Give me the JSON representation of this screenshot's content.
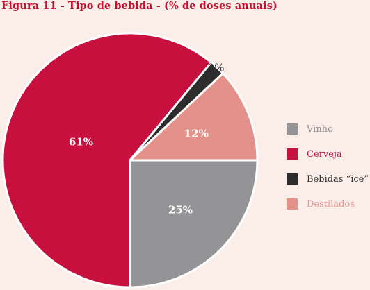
{
  "title": "Figura 11 - Tipo de bebida - (% de doses anuais)",
  "chart_data": {
    "type": "pie",
    "title": "Figura 11 - Tipo de bebida - (% de doses anuais)",
    "unit": "%",
    "legend_position": "right",
    "categories": [
      "Vinho",
      "Cerveja",
      "Bebidas “ice”",
      "Destilados"
    ],
    "values": [
      25,
      61,
      2,
      12
    ],
    "labels": [
      "25%",
      "61%",
      "2%",
      "12%"
    ],
    "colors": [
      "#949497",
      "#c8103f",
      "#2d2d2d",
      "#e5918b"
    ],
    "legend_text_colors": [
      "#8c8c8c",
      "#c8103f",
      "#2d2d2d",
      "#e5918b"
    ]
  }
}
